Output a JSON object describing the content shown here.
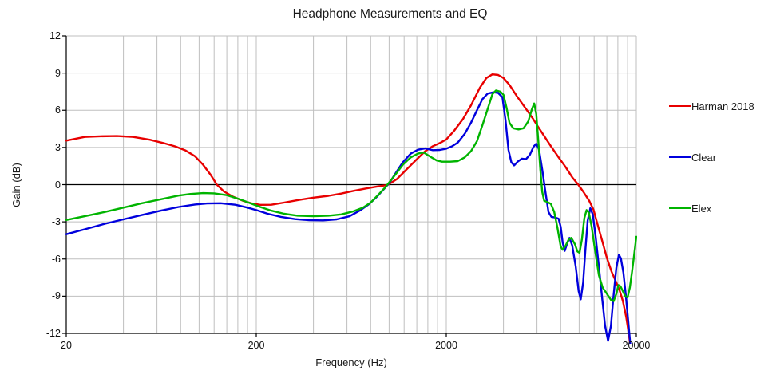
{
  "chart_data": {
    "type": "line",
    "title": "Headphone Measurements and EQ",
    "xlabel": "Frequency (Hz)",
    "ylabel": "Gain (dB)",
    "xscale": "log",
    "xlim": [
      20,
      20000
    ],
    "ylim": [
      -12,
      12
    ],
    "y_step": 3,
    "grid": "on",
    "legend_position": "right",
    "x_tick_labels": [
      {
        "value": 20,
        "label": "20"
      },
      {
        "value": 200,
        "label": "200"
      },
      {
        "value": 2000,
        "label": "2000"
      },
      {
        "value": 20000,
        "label": "20000"
      }
    ],
    "y_tick_labels": [
      "12",
      "9",
      "6",
      "3",
      "0",
      "-3",
      "-6",
      "-9",
      "-12"
    ],
    "x_gridlines": [
      40,
      60,
      80,
      100,
      120,
      140,
      160,
      180,
      200,
      400,
      600,
      800,
      1000,
      1200,
      1400,
      1600,
      1800,
      2000,
      4000,
      6000,
      8000,
      10000,
      12000,
      14000,
      16000,
      18000,
      20000
    ],
    "y_gridlines": [
      12,
      9,
      6,
      3,
      -3,
      -6,
      -9
    ],
    "zero_line": 0,
    "colors": {
      "grid": "#bfbfbf",
      "axis": "#000000",
      "text": "#1a1a1a"
    },
    "series": [
      {
        "name": "Harman 2018",
        "color": "#e80000",
        "points": [
          [
            20,
            3.55
          ],
          [
            25,
            3.85
          ],
          [
            30,
            3.9
          ],
          [
            37,
            3.92
          ],
          [
            45,
            3.85
          ],
          [
            55,
            3.62
          ],
          [
            65,
            3.35
          ],
          [
            75,
            3.08
          ],
          [
            85,
            2.75
          ],
          [
            95,
            2.3
          ],
          [
            105,
            1.6
          ],
          [
            115,
            0.8
          ],
          [
            124,
            0
          ],
          [
            135,
            -0.55
          ],
          [
            150,
            -0.95
          ],
          [
            170,
            -1.3
          ],
          [
            190,
            -1.52
          ],
          [
            210,
            -1.63
          ],
          [
            240,
            -1.62
          ],
          [
            280,
            -1.45
          ],
          [
            330,
            -1.25
          ],
          [
            400,
            -1.05
          ],
          [
            480,
            -0.9
          ],
          [
            560,
            -0.72
          ],
          [
            650,
            -0.5
          ],
          [
            760,
            -0.3
          ],
          [
            870,
            -0.15
          ],
          [
            980,
            -0.03
          ],
          [
            1100,
            0.45
          ],
          [
            1250,
            1.3
          ],
          [
            1400,
            2.05
          ],
          [
            1550,
            2.7
          ],
          [
            1700,
            3.1
          ],
          [
            1850,
            3.35
          ],
          [
            2000,
            3.65
          ],
          [
            2200,
            4.35
          ],
          [
            2450,
            5.3
          ],
          [
            2700,
            6.4
          ],
          [
            3000,
            7.8
          ],
          [
            3250,
            8.6
          ],
          [
            3500,
            8.9
          ],
          [
            3750,
            8.85
          ],
          [
            4000,
            8.6
          ],
          [
            4300,
            8.05
          ],
          [
            4700,
            7.15
          ],
          [
            5200,
            6.2
          ],
          [
            5700,
            5.35
          ],
          [
            6000,
            4.8
          ],
          [
            6500,
            4
          ],
          [
            7100,
            3.1
          ],
          [
            7800,
            2.2
          ],
          [
            8500,
            1.4
          ],
          [
            9200,
            0.6
          ],
          [
            9900,
            0
          ],
          [
            10600,
            -0.65
          ],
          [
            11300,
            -1.3
          ],
          [
            11900,
            -2
          ],
          [
            12500,
            -3.2
          ],
          [
            13200,
            -4.5
          ],
          [
            14000,
            -5.9
          ],
          [
            14800,
            -7
          ],
          [
            15600,
            -7.8
          ],
          [
            16300,
            -8.5
          ],
          [
            17000,
            -9.4
          ],
          [
            17700,
            -10.7
          ],
          [
            18300,
            -12.1
          ],
          [
            18800,
            -13.6
          ]
        ]
      },
      {
        "name": "Clear",
        "color": "#0000dd",
        "points": [
          [
            20,
            -4
          ],
          [
            25,
            -3.6
          ],
          [
            32,
            -3.15
          ],
          [
            40,
            -2.8
          ],
          [
            50,
            -2.45
          ],
          [
            63,
            -2.1
          ],
          [
            78,
            -1.8
          ],
          [
            95,
            -1.6
          ],
          [
            110,
            -1.52
          ],
          [
            130,
            -1.5
          ],
          [
            155,
            -1.62
          ],
          [
            180,
            -1.85
          ],
          [
            200,
            -2.05
          ],
          [
            230,
            -2.35
          ],
          [
            270,
            -2.6
          ],
          [
            320,
            -2.78
          ],
          [
            380,
            -2.87
          ],
          [
            450,
            -2.88
          ],
          [
            530,
            -2.8
          ],
          [
            620,
            -2.55
          ],
          [
            700,
            -2.1
          ],
          [
            780,
            -1.6
          ],
          [
            860,
            -1
          ],
          [
            940,
            -0.35
          ],
          [
            1010,
            0.2
          ],
          [
            1090,
            1
          ],
          [
            1180,
            1.8
          ],
          [
            1300,
            2.5
          ],
          [
            1420,
            2.82
          ],
          [
            1550,
            2.92
          ],
          [
            1700,
            2.78
          ],
          [
            1850,
            2.8
          ],
          [
            2000,
            2.9
          ],
          [
            2150,
            3.1
          ],
          [
            2300,
            3.4
          ],
          [
            2500,
            4.1
          ],
          [
            2700,
            5
          ],
          [
            2900,
            6
          ],
          [
            3100,
            6.9
          ],
          [
            3300,
            7.35
          ],
          [
            3550,
            7.45
          ],
          [
            3750,
            7.4
          ],
          [
            3950,
            7.05
          ],
          [
            4100,
            5.2
          ],
          [
            4250,
            2.8
          ],
          [
            4400,
            1.8
          ],
          [
            4550,
            1.55
          ],
          [
            4750,
            1.85
          ],
          [
            5000,
            2.1
          ],
          [
            5250,
            2.05
          ],
          [
            5500,
            2.4
          ],
          [
            5750,
            3.05
          ],
          [
            5950,
            3.3
          ],
          [
            6150,
            2.85
          ],
          [
            6400,
            1.2
          ],
          [
            6650,
            -0.6
          ],
          [
            6900,
            -2.2
          ],
          [
            7150,
            -2.6
          ],
          [
            7500,
            -2.65
          ],
          [
            7800,
            -2.75
          ],
          [
            8000,
            -3.4
          ],
          [
            8200,
            -4.7
          ],
          [
            8400,
            -5.35
          ],
          [
            8650,
            -4.75
          ],
          [
            8900,
            -4.3
          ],
          [
            9200,
            -4.9
          ],
          [
            9600,
            -6.6
          ],
          [
            9950,
            -8.6
          ],
          [
            10200,
            -9.25
          ],
          [
            10500,
            -7.9
          ],
          [
            10800,
            -5.2
          ],
          [
            11100,
            -2.9
          ],
          [
            11450,
            -1.9
          ],
          [
            11800,
            -2.4
          ],
          [
            12200,
            -4.1
          ],
          [
            12700,
            -6.6
          ],
          [
            13200,
            -9.1
          ],
          [
            13700,
            -11.4
          ],
          [
            14200,
            -12.6
          ],
          [
            14700,
            -11.4
          ],
          [
            15200,
            -8.9
          ],
          [
            15700,
            -6.7
          ],
          [
            16200,
            -5.65
          ],
          [
            16600,
            -5.95
          ],
          [
            17100,
            -7.1
          ],
          [
            17600,
            -8.9
          ],
          [
            18100,
            -10.9
          ],
          [
            18600,
            -12.9
          ],
          [
            18950,
            -14.2
          ]
        ]
      },
      {
        "name": "Elex",
        "color": "#00b400",
        "points": [
          [
            20,
            -2.85
          ],
          [
            25,
            -2.55
          ],
          [
            32,
            -2.2
          ],
          [
            40,
            -1.85
          ],
          [
            50,
            -1.5
          ],
          [
            63,
            -1.18
          ],
          [
            78,
            -0.88
          ],
          [
            90,
            -0.75
          ],
          [
            105,
            -0.68
          ],
          [
            120,
            -0.7
          ],
          [
            140,
            -0.85
          ],
          [
            165,
            -1.2
          ],
          [
            190,
            -1.55
          ],
          [
            210,
            -1.8
          ],
          [
            240,
            -2.1
          ],
          [
            280,
            -2.35
          ],
          [
            330,
            -2.5
          ],
          [
            400,
            -2.55
          ],
          [
            480,
            -2.5
          ],
          [
            560,
            -2.4
          ],
          [
            650,
            -2.15
          ],
          [
            730,
            -1.85
          ],
          [
            800,
            -1.45
          ],
          [
            880,
            -0.8
          ],
          [
            950,
            -0.25
          ],
          [
            1010,
            0.25
          ],
          [
            1090,
            0.9
          ],
          [
            1180,
            1.6
          ],
          [
            1300,
            2.2
          ],
          [
            1420,
            2.5
          ],
          [
            1520,
            2.6
          ],
          [
            1650,
            2.25
          ],
          [
            1780,
            1.95
          ],
          [
            1900,
            1.85
          ],
          [
            2100,
            1.85
          ],
          [
            2300,
            1.9
          ],
          [
            2500,
            2.2
          ],
          [
            2700,
            2.7
          ],
          [
            2900,
            3.5
          ],
          [
            3100,
            4.8
          ],
          [
            3300,
            6.1
          ],
          [
            3500,
            7.3
          ],
          [
            3650,
            7.6
          ],
          [
            3850,
            7.5
          ],
          [
            4000,
            7.25
          ],
          [
            4150,
            6.2
          ],
          [
            4300,
            5
          ],
          [
            4500,
            4.55
          ],
          [
            4800,
            4.45
          ],
          [
            5100,
            4.55
          ],
          [
            5400,
            5.1
          ],
          [
            5650,
            6.1
          ],
          [
            5800,
            6.55
          ],
          [
            5950,
            5.7
          ],
          [
            6100,
            3.5
          ],
          [
            6250,
            1.2
          ],
          [
            6400,
            -0.6
          ],
          [
            6550,
            -1.3
          ],
          [
            6800,
            -1.4
          ],
          [
            7100,
            -1.55
          ],
          [
            7400,
            -2.2
          ],
          [
            7700,
            -3.5
          ],
          [
            8000,
            -5
          ],
          [
            8200,
            -5.25
          ],
          [
            8500,
            -4.9
          ],
          [
            8800,
            -4.45
          ],
          [
            9100,
            -4.3
          ],
          [
            9500,
            -4.8
          ],
          [
            9800,
            -5.4
          ],
          [
            10050,
            -5.5
          ],
          [
            10350,
            -4.4
          ],
          [
            10650,
            -2.7
          ],
          [
            10950,
            -2.05
          ],
          [
            11250,
            -2.25
          ],
          [
            11650,
            -3.4
          ],
          [
            12100,
            -5.2
          ],
          [
            12700,
            -7.3
          ],
          [
            13300,
            -8.3
          ],
          [
            14000,
            -8.8
          ],
          [
            14700,
            -9.3
          ],
          [
            15200,
            -9.4
          ],
          [
            15700,
            -8.8
          ],
          [
            16100,
            -8.1
          ],
          [
            16500,
            -8.2
          ],
          [
            17000,
            -8.6
          ],
          [
            17500,
            -9
          ],
          [
            18000,
            -9.1
          ],
          [
            18500,
            -8.3
          ],
          [
            19000,
            -7
          ],
          [
            19500,
            -5.6
          ],
          [
            20000,
            -4.2
          ]
        ]
      }
    ]
  }
}
